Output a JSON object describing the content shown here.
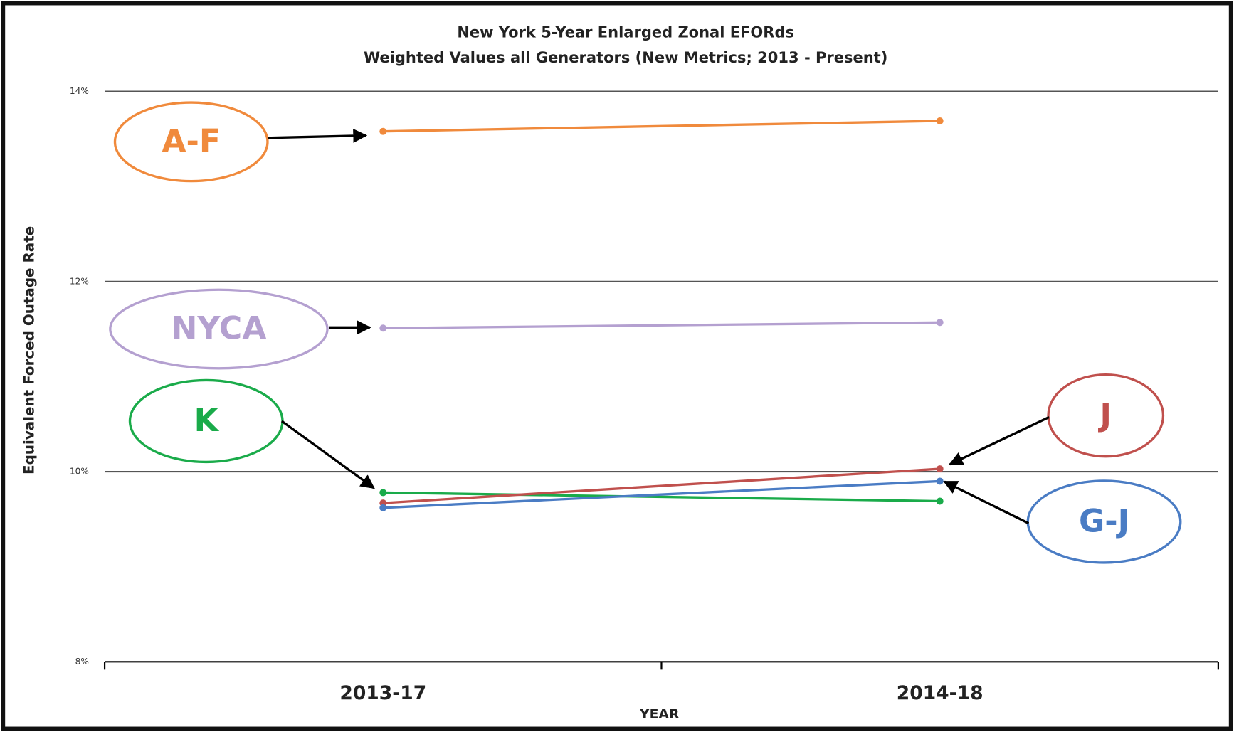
{
  "chart_data": {
    "type": "line",
    "title": "New York 5-Year Enlarged Zonal EFORds",
    "subtitle": "Weighted Values all Generators (New Metrics; 2013 - Present)",
    "x_label": "YEAR",
    "y_label": "Equivalent Forced Outage Rate",
    "categories": [
      "2013-17",
      "2014-18"
    ],
    "ylim": [
      8,
      14
    ],
    "yticks": [
      {
        "value": 8,
        "label": "8%"
      },
      {
        "value": 10,
        "label": "10%"
      },
      {
        "value": 12,
        "label": "12%"
      },
      {
        "value": 14,
        "label": "14%"
      }
    ],
    "grid": true,
    "series": [
      {
        "name": "A-F",
        "color": "#f08a3c",
        "values": [
          13.58,
          13.69
        ]
      },
      {
        "name": "NYCA",
        "color": "#b4a0d0",
        "values": [
          11.51,
          11.57
        ]
      },
      {
        "name": "K",
        "color": "#1aab4a",
        "values": [
          9.78,
          9.69
        ]
      },
      {
        "name": "J",
        "color": "#c0504d",
        "values": [
          9.67,
          10.03
        ]
      },
      {
        "name": "G-J",
        "color": "#4a7cc4",
        "values": [
          9.62,
          9.9
        ]
      }
    ]
  }
}
